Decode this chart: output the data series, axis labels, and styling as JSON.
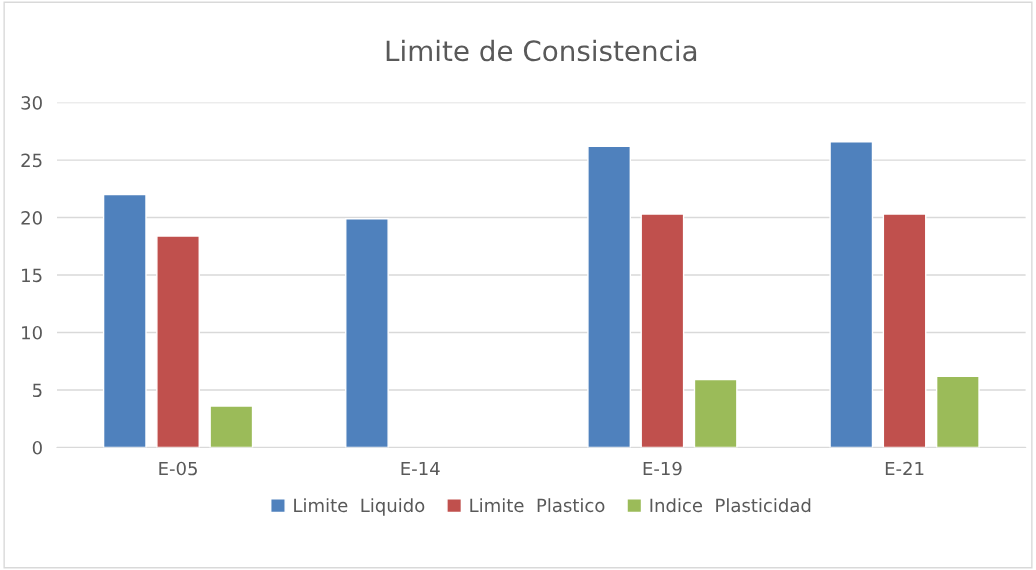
{
  "chart_data": {
    "type": "bar",
    "title": "Limite de Consistencia",
    "categories": [
      "E-05",
      "E-14",
      "E-19",
      "E-21"
    ],
    "series": [
      {
        "name": "Limite  Liquido",
        "color": "#4f81bd",
        "values": [
          22.0,
          19.9,
          26.2,
          26.6
        ]
      },
      {
        "name": "Limite  Plastico",
        "color": "#c0504d",
        "values": [
          18.4,
          null,
          20.3,
          20.3
        ]
      },
      {
        "name": "Indice  Plasticidad",
        "color": "#9bbb59",
        "values": [
          3.6,
          null,
          5.9,
          6.2
        ]
      }
    ],
    "ylim": [
      0,
      30
    ],
    "yticks": [
      0,
      5,
      10,
      15,
      20,
      25,
      30
    ],
    "grid": "y",
    "legend": "bottom"
  }
}
